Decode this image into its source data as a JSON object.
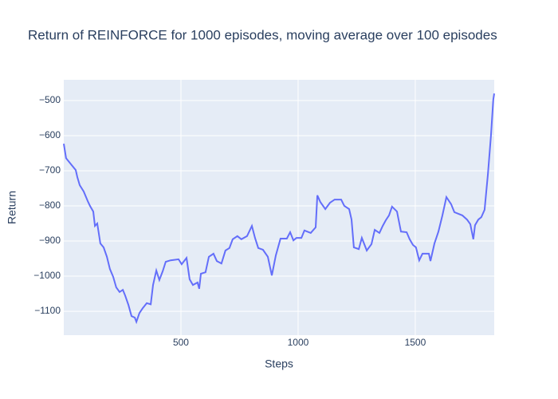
{
  "chart_data": {
    "type": "line",
    "title": "Return of REINFORCE for 1000 episodes, moving average over 100 episodes",
    "x_label": "Steps",
    "y_label": "Return",
    "x": [
      0,
      10,
      34,
      51,
      58,
      68,
      85,
      102,
      112,
      126,
      133,
      143,
      156,
      170,
      184,
      197,
      211,
      224,
      238,
      252,
      262,
      276,
      289,
      303,
      310,
      323,
      337,
      354,
      371,
      381,
      395,
      408,
      422,
      435,
      456,
      490,
      503,
      524,
      537,
      551,
      571,
      578,
      585,
      605,
      619,
      639,
      653,
      673,
      690,
      707,
      721,
      741,
      758,
      782,
      803,
      816,
      830,
      850,
      871,
      888,
      905,
      925,
      952,
      966,
      980,
      993,
      1014,
      1027,
      1054,
      1075,
      1082,
      1095,
      1116,
      1136,
      1156,
      1184,
      1197,
      1218,
      1228,
      1238,
      1259,
      1272,
      1293,
      1313,
      1327,
      1347,
      1361,
      1374,
      1388,
      1401,
      1422,
      1439,
      1463,
      1476,
      1490,
      1503,
      1517,
      1531,
      1558,
      1565,
      1582,
      1599,
      1616,
      1633,
      1653,
      1667,
      1701,
      1721,
      1735,
      1748,
      1755,
      1769,
      1782,
      1796,
      1810,
      1823,
      1833,
      1837
    ],
    "series": [
      {
        "name": "Return",
        "color": "#636efa",
        "values": [
          -623,
          -664,
          -684,
          -698,
          -718,
          -741,
          -759,
          -786,
          -800,
          -816,
          -857,
          -850,
          -907,
          -918,
          -945,
          -980,
          -1002,
          -1032,
          -1045,
          -1039,
          -1055,
          -1082,
          -1114,
          -1118,
          -1130,
          -1105,
          -1091,
          -1077,
          -1080,
          -1025,
          -984,
          -1011,
          -986,
          -959,
          -955,
          -952,
          -966,
          -948,
          -1009,
          -1025,
          -1018,
          -1036,
          -993,
          -989,
          -945,
          -936,
          -957,
          -964,
          -927,
          -920,
          -895,
          -886,
          -895,
          -886,
          -857,
          -891,
          -920,
          -925,
          -945,
          -998,
          -941,
          -893,
          -893,
          -875,
          -898,
          -891,
          -891,
          -870,
          -877,
          -861,
          -770,
          -789,
          -809,
          -791,
          -782,
          -782,
          -800,
          -809,
          -839,
          -918,
          -923,
          -891,
          -927,
          -909,
          -868,
          -877,
          -857,
          -841,
          -827,
          -802,
          -816,
          -873,
          -875,
          -895,
          -911,
          -918,
          -955,
          -936,
          -936,
          -957,
          -907,
          -873,
          -827,
          -775,
          -795,
          -818,
          -827,
          -839,
          -852,
          -895,
          -855,
          -839,
          -832,
          -811,
          -709,
          -600,
          -498,
          -480
        ]
      }
    ],
    "xlim": [
      0,
      1837
    ],
    "ylim": [
      -1168,
      -441
    ],
    "xticks": [
      500,
      1000,
      1500
    ],
    "yticks": [
      {
        "value": -500,
        "label": "−500"
      },
      {
        "value": -600,
        "label": "−600"
      },
      {
        "value": -700,
        "label": "−700"
      },
      {
        "value": -800,
        "label": "−800"
      },
      {
        "value": -900,
        "label": "−900"
      },
      {
        "value": -1000,
        "label": "−1000"
      },
      {
        "value": -1100,
        "label": "−1100"
      }
    ],
    "grid": true,
    "background": "#e5ecf6"
  }
}
